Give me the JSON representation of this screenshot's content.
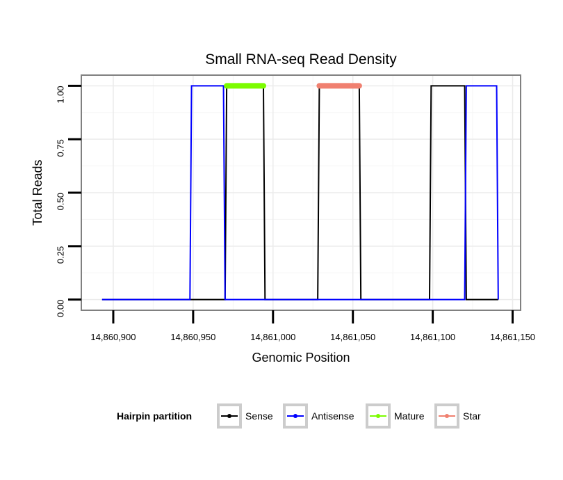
{
  "chart_data": {
    "type": "line",
    "title": "Small RNA-seq Read Density",
    "xlabel": "Genomic Position",
    "ylabel": "Total Reads",
    "xlim": [
      14860880,
      14861155
    ],
    "ylim": [
      -0.05,
      1.05
    ],
    "x_ticks": [
      14860900,
      14860950,
      14861000,
      14861050,
      14861100,
      14861150
    ],
    "x_tick_labels": [
      "14,860,900",
      "14,860,950",
      "14,861,000",
      "14,861,050",
      "14,861,100",
      "14,861,150"
    ],
    "y_ticks": [
      0,
      0.25,
      0.5,
      0.75,
      1.0
    ],
    "y_tick_labels": [
      "0.00",
      "0.25",
      "0.50",
      "0.75",
      "1.00"
    ],
    "grid": true,
    "legend": {
      "title": "Hairpin partition",
      "position": "bottom",
      "entries": [
        {
          "label": "Sense",
          "color": "#000000"
        },
        {
          "label": "Antisense",
          "color": "#0000ff"
        },
        {
          "label": "Mature",
          "color": "#7cfc00"
        },
        {
          "label": "Star",
          "color": "#f08070"
        }
      ]
    },
    "series": [
      {
        "name": "Sense",
        "color": "#000000",
        "points": [
          [
            14860893,
            0
          ],
          [
            14860970,
            0
          ],
          [
            14860971,
            1
          ],
          [
            14860994,
            1
          ],
          [
            14860995,
            0
          ],
          [
            14861028,
            0
          ],
          [
            14861029,
            1
          ],
          [
            14861054,
            1
          ],
          [
            14861055,
            0
          ],
          [
            14861098,
            0
          ],
          [
            14861099,
            1
          ],
          [
            14861120,
            1
          ],
          [
            14861121,
            0
          ],
          [
            14861141,
            0
          ]
        ]
      },
      {
        "name": "Antisense",
        "color": "#0000ff",
        "points": [
          [
            14860893,
            0
          ],
          [
            14860948,
            0
          ],
          [
            14860949,
            1
          ],
          [
            14860969,
            1
          ],
          [
            14860970,
            0
          ],
          [
            14861120,
            0
          ],
          [
            14861121,
            1
          ],
          [
            14861140,
            1
          ],
          [
            14861141,
            0
          ]
        ]
      },
      {
        "name": "Mature",
        "color": "#7cfc00",
        "points": [
          [
            14860971,
            1
          ],
          [
            14860994,
            1
          ]
        ]
      },
      {
        "name": "Star",
        "color": "#f08070",
        "points": [
          [
            14861029,
            1
          ],
          [
            14861054,
            1
          ]
        ]
      }
    ]
  }
}
